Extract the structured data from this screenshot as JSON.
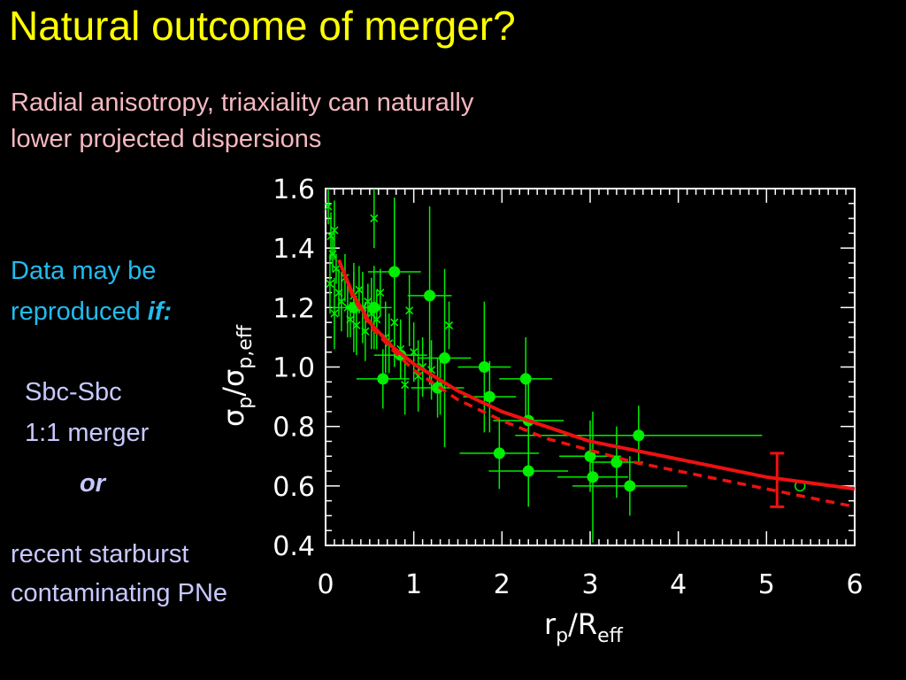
{
  "slide": {
    "title": "Natural outcome of merger?",
    "subtitle_lines": [
      "Radial anisotropy, triaxiality can naturally",
      "lower projected dispersions"
    ],
    "condition_text": "Data may be",
    "condition_text2": "reproduced",
    "condition_emph": "if:",
    "option1_lines": [
      "Sbc-Sbc",
      "1:1 merger"
    ],
    "or_label": "or",
    "option2_lines": [
      "recent starburst",
      "contaminating PNe"
    ]
  },
  "colors": {
    "title": "#ffff00",
    "subtitle": "#f5b8c0",
    "condition": "#22bbee",
    "options": "#c8c8ff",
    "data": "#00ee00",
    "model": "#ee1111"
  },
  "chart_data": {
    "type": "scatter",
    "xlabel_main": "r",
    "xlabel_sub": "p",
    "xlabel_main2": "/R",
    "xlabel_sub2": "eff",
    "ylabel_main": "σ",
    "ylabel_sub": "p",
    "ylabel_main2": "/σ",
    "ylabel_sub2": "p,eff",
    "xlim": [
      0,
      6
    ],
    "ylim": [
      0.4,
      1.6
    ],
    "xticks": [
      "0",
      "1",
      "2",
      "3",
      "4",
      "5",
      "6"
    ],
    "yticks": [
      "0.4",
      "0.6",
      "0.8",
      "1.0",
      "1.2",
      "1.4",
      "1.6"
    ],
    "series": [
      {
        "marker": "filled-circle",
        "points": [
          {
            "x": 0.78,
            "y": 1.32,
            "xerr": 0.3,
            "yerr": 0.25
          },
          {
            "x": 0.32,
            "y": 1.2,
            "xerr": 0.25,
            "yerr": 0.15
          },
          {
            "x": 0.55,
            "y": 1.2,
            "xerr": 0.2,
            "yerr": 0.14
          },
          {
            "x": 0.65,
            "y": 0.96,
            "xerr": 0.3,
            "yerr": 0.1
          },
          {
            "x": 0.85,
            "y": 1.04,
            "xerr": 0.3,
            "yerr": 0.08
          },
          {
            "x": 1.18,
            "y": 1.24,
            "xerr": 0.25,
            "yerr": 0.3
          },
          {
            "x": 1.27,
            "y": 0.93,
            "xerr": 0.3,
            "yerr": 0.1
          },
          {
            "x": 1.35,
            "y": 1.03,
            "xerr": 0.3,
            "yerr": 0.3
          },
          {
            "x": 1.8,
            "y": 1.0,
            "xerr": 0.3,
            "yerr": 0.22
          },
          {
            "x": 1.86,
            "y": 0.9,
            "xerr": 0.3,
            "yerr": 0.12
          },
          {
            "x": 1.97,
            "y": 0.71,
            "xerr": 0.45,
            "yerr": 0.12
          },
          {
            "x": 2.27,
            "y": 0.96,
            "xerr": 0.3,
            "yerr": 0.14
          },
          {
            "x": 2.3,
            "y": 0.82,
            "xerr": 0.4,
            "yerr": 0.15
          },
          {
            "x": 2.3,
            "y": 0.65,
            "xerr": 0.45,
            "yerr": 0.12
          },
          {
            "x": 3.0,
            "y": 0.7,
            "xerr": 0.35,
            "yerr": 0.12
          },
          {
            "x": 3.03,
            "y": 0.63,
            "xerr": 0.4,
            "yerr": 0.22
          },
          {
            "x": 3.3,
            "y": 0.68,
            "xerr": 0.3,
            "yerr": 0.12
          },
          {
            "x": 3.45,
            "y": 0.6,
            "xerr": 0.65,
            "yerr": 0.1
          },
          {
            "x": 3.55,
            "y": 0.77,
            "xerr": 1.4,
            "yerr": 0.1
          }
        ]
      },
      {
        "marker": "x",
        "points": [
          {
            "x": 0.03,
            "y": 1.54,
            "yerr": 0.06
          },
          {
            "x": 0.06,
            "y": 1.44,
            "yerr": 0.08
          },
          {
            "x": 0.08,
            "y": 1.38,
            "yerr": 0.06
          },
          {
            "x": 0.1,
            "y": 1.46,
            "yerr": 0.1
          },
          {
            "x": 0.12,
            "y": 1.33,
            "yerr": 0.05
          },
          {
            "x": 0.05,
            "y": 1.28,
            "yerr": 0.1
          },
          {
            "x": 0.15,
            "y": 1.25,
            "yerr": 0.08
          },
          {
            "x": 0.18,
            "y": 1.22,
            "yerr": 0.1
          },
          {
            "x": 0.1,
            "y": 1.18,
            "yerr": 0.12
          },
          {
            "x": 0.22,
            "y": 1.3,
            "yerr": 0.08
          },
          {
            "x": 0.25,
            "y": 1.2,
            "yerr": 0.1
          },
          {
            "x": 0.28,
            "y": 1.16,
            "yerr": 0.06
          },
          {
            "x": 0.32,
            "y": 1.24,
            "yerr": 0.08
          },
          {
            "x": 0.35,
            "y": 1.14,
            "yerr": 0.1
          },
          {
            "x": 0.38,
            "y": 1.26,
            "yerr": 0.08
          },
          {
            "x": 0.42,
            "y": 1.2,
            "yerr": 0.12
          },
          {
            "x": 0.45,
            "y": 1.12,
            "yerr": 0.1
          },
          {
            "x": 0.48,
            "y": 1.22,
            "yerr": 0.06
          },
          {
            "x": 0.52,
            "y": 1.18,
            "yerr": 0.12
          },
          {
            "x": 0.55,
            "y": 1.5,
            "yerr": 0.1
          },
          {
            "x": 0.58,
            "y": 1.16,
            "yerr": 0.1
          },
          {
            "x": 0.62,
            "y": 1.25,
            "yerr": 0.08
          },
          {
            "x": 0.68,
            "y": 1.1,
            "yerr": 0.12
          },
          {
            "x": 0.72,
            "y": 1.08,
            "yerr": 0.1
          },
          {
            "x": 0.78,
            "y": 1.15,
            "yerr": 0.15
          },
          {
            "x": 0.85,
            "y": 1.06,
            "yerr": 0.1
          },
          {
            "x": 0.9,
            "y": 0.94,
            "yerr": 0.1
          },
          {
            "x": 0.95,
            "y": 1.19,
            "yerr": 0.12
          },
          {
            "x": 1.0,
            "y": 1.05,
            "yerr": 0.1
          },
          {
            "x": 1.05,
            "y": 0.97,
            "yerr": 0.12
          },
          {
            "x": 1.1,
            "y": 1.0,
            "yerr": 0.1
          },
          {
            "x": 1.2,
            "y": 0.99,
            "yerr": 0.1
          },
          {
            "x": 1.3,
            "y": 0.94,
            "yerr": 0.1
          },
          {
            "x": 1.4,
            "y": 1.14,
            "yerr": 0.08
          }
        ]
      },
      {
        "marker": "open-circle",
        "points": [
          {
            "x": 5.38,
            "y": 0.6
          }
        ]
      }
    ],
    "model_curves": [
      {
        "style": "solid",
        "points": [
          {
            "x": 0.15,
            "y": 1.36
          },
          {
            "x": 0.3,
            "y": 1.25
          },
          {
            "x": 0.5,
            "y": 1.15
          },
          {
            "x": 0.75,
            "y": 1.07
          },
          {
            "x": 1.0,
            "y": 1.01
          },
          {
            "x": 1.5,
            "y": 0.92
          },
          {
            "x": 2.0,
            "y": 0.85
          },
          {
            "x": 2.5,
            "y": 0.8
          },
          {
            "x": 3.0,
            "y": 0.75
          },
          {
            "x": 3.5,
            "y": 0.72
          },
          {
            "x": 4.0,
            "y": 0.69
          },
          {
            "x": 4.5,
            "y": 0.66
          },
          {
            "x": 5.0,
            "y": 0.63
          },
          {
            "x": 5.5,
            "y": 0.61
          },
          {
            "x": 6.0,
            "y": 0.59
          }
        ]
      },
      {
        "style": "dashed",
        "points": [
          {
            "x": 0.15,
            "y": 1.36
          },
          {
            "x": 0.3,
            "y": 1.24
          },
          {
            "x": 0.5,
            "y": 1.14
          },
          {
            "x": 0.75,
            "y": 1.06
          },
          {
            "x": 1.0,
            "y": 0.99
          },
          {
            "x": 1.5,
            "y": 0.89
          },
          {
            "x": 2.0,
            "y": 0.82
          },
          {
            "x": 2.5,
            "y": 0.76
          },
          {
            "x": 3.0,
            "y": 0.72
          },
          {
            "x": 3.5,
            "y": 0.68
          },
          {
            "x": 4.0,
            "y": 0.65
          },
          {
            "x": 4.5,
            "y": 0.62
          },
          {
            "x": 5.0,
            "y": 0.59
          },
          {
            "x": 5.5,
            "y": 0.56
          },
          {
            "x": 6.0,
            "y": 0.53
          }
        ]
      }
    ],
    "model_errorbar": {
      "x": 5.12,
      "y": 0.62,
      "yerr": 0.09
    }
  }
}
